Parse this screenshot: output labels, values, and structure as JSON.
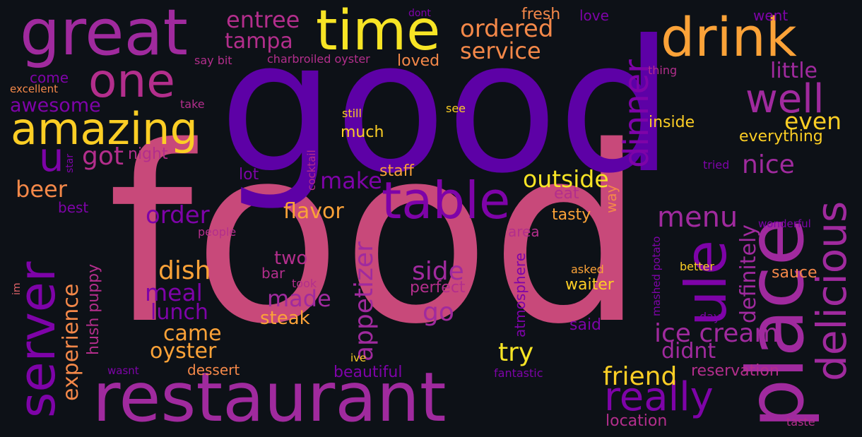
{
  "colors": {
    "background": "#0d1117",
    "c1": "#c8497a",
    "c2": "#5d01a6",
    "c3": "#a02a9e",
    "c4": "#f7e425",
    "c5": "#fba238",
    "c6": "#f48849",
    "c7": "#7e03a8",
    "c8": "#b32e8c",
    "c9": "#fcce25",
    "c10": "#e1646a"
  },
  "words": [
    {
      "text": "food",
      "color": "c1"
    },
    {
      "text": "good",
      "color": "c2"
    },
    {
      "text": "restaurant",
      "color": "c3"
    },
    {
      "text": "place",
      "color": "c3"
    },
    {
      "text": "great",
      "color": "c3"
    },
    {
      "text": "time",
      "color": "c4"
    },
    {
      "text": "drink",
      "color": "c5"
    },
    {
      "text": "table",
      "color": "c7"
    },
    {
      "text": "amazing",
      "color": "c9"
    },
    {
      "text": "server",
      "color": "c7"
    },
    {
      "text": "delicious",
      "color": "c3"
    },
    {
      "text": "one",
      "color": "c8"
    },
    {
      "text": "ule",
      "color": "c7"
    },
    {
      "text": "really",
      "color": "c7"
    },
    {
      "text": "well",
      "color": "c3"
    },
    {
      "text": "dinner",
      "color": "c7"
    },
    {
      "text": "ordered",
      "color": "c6"
    },
    {
      "text": "service",
      "color": "c6"
    },
    {
      "text": "entree",
      "color": "c8"
    },
    {
      "text": "tampa",
      "color": "c8"
    },
    {
      "text": "fresh",
      "color": "c6"
    },
    {
      "text": "love",
      "color": "c7"
    },
    {
      "text": "went",
      "color": "c7"
    },
    {
      "text": "little",
      "color": "c3"
    },
    {
      "text": "loved",
      "color": "c6"
    },
    {
      "text": "charbroiled oyster",
      "color": "c8"
    },
    {
      "text": "say bit",
      "color": "c8"
    },
    {
      "text": "dont",
      "color": "c7"
    },
    {
      "text": "thing",
      "color": "c8"
    },
    {
      "text": "come",
      "color": "c7"
    },
    {
      "text": "excellent",
      "color": "c6"
    },
    {
      "text": "awesome",
      "color": "c7"
    },
    {
      "text": "take",
      "color": "c8"
    },
    {
      "text": "still",
      "color": "c9"
    },
    {
      "text": "see",
      "color": "c9"
    },
    {
      "text": "much",
      "color": "c9"
    },
    {
      "text": "inside",
      "color": "c9"
    },
    {
      "text": "even",
      "color": "c9"
    },
    {
      "text": "everything",
      "color": "c9"
    },
    {
      "text": "u",
      "color": "c7"
    },
    {
      "text": "got",
      "color": "c8"
    },
    {
      "text": "night",
      "color": "c8"
    },
    {
      "text": "nice",
      "color": "c3"
    },
    {
      "text": "tried",
      "color": "c7"
    },
    {
      "text": "star",
      "color": "c7"
    },
    {
      "text": "cocktail",
      "color": "c8"
    },
    {
      "text": "lot",
      "color": "c7"
    },
    {
      "text": "staff",
      "color": "c5"
    },
    {
      "text": "make",
      "color": "c7"
    },
    {
      "text": "outside",
      "color": "c4"
    },
    {
      "text": "beer",
      "color": "c6"
    },
    {
      "text": "best",
      "color": "c7"
    },
    {
      "text": "eat",
      "color": "c8"
    },
    {
      "text": "tasty",
      "color": "c5"
    },
    {
      "text": "way",
      "color": "c6"
    },
    {
      "text": "flavor",
      "color": "c5"
    },
    {
      "text": "order",
      "color": "c7"
    },
    {
      "text": "menu",
      "color": "c3"
    },
    {
      "text": "definitely",
      "color": "c3"
    },
    {
      "text": "people",
      "color": "c8"
    },
    {
      "text": "wonderful",
      "color": "c7"
    },
    {
      "text": "appetizer",
      "color": "c3"
    },
    {
      "text": "area",
      "color": "c8"
    },
    {
      "text": "mashed potato",
      "color": "c7"
    },
    {
      "text": "two",
      "color": "c8"
    },
    {
      "text": "bar",
      "color": "c8"
    },
    {
      "text": "dish",
      "color": "c5"
    },
    {
      "text": "side",
      "color": "c3"
    },
    {
      "text": "experience",
      "color": "c6"
    },
    {
      "text": "hush puppy",
      "color": "c8"
    },
    {
      "text": "atmosphere",
      "color": "c7"
    },
    {
      "text": "asked",
      "color": "c5"
    },
    {
      "text": "better",
      "color": "c9"
    },
    {
      "text": "sauce",
      "color": "c6"
    },
    {
      "text": "perfect",
      "color": "c8"
    },
    {
      "text": "took",
      "color": "c8"
    },
    {
      "text": "waiter",
      "color": "c9"
    },
    {
      "text": "im",
      "color": "c10"
    },
    {
      "text": "meal",
      "color": "c7"
    },
    {
      "text": "made",
      "color": "c3"
    },
    {
      "text": "day",
      "color": "c7"
    },
    {
      "text": "lunch",
      "color": "c7"
    },
    {
      "text": "go",
      "color": "c3"
    },
    {
      "text": "steak",
      "color": "c5"
    },
    {
      "text": "said",
      "color": "c7"
    },
    {
      "text": "ice cream",
      "color": "c3"
    },
    {
      "text": "came",
      "color": "c5"
    },
    {
      "text": "oyster",
      "color": "c5"
    },
    {
      "text": "try",
      "color": "c4"
    },
    {
      "text": "didnt",
      "color": "c3"
    },
    {
      "text": "friend",
      "color": "c9"
    },
    {
      "text": "ive",
      "color": "c9"
    },
    {
      "text": "dessert",
      "color": "c6"
    },
    {
      "text": "beautiful",
      "color": "c7"
    },
    {
      "text": "fantastic",
      "color": "c7"
    },
    {
      "text": "wasnt",
      "color": "c7"
    },
    {
      "text": "reservation",
      "color": "c8"
    },
    {
      "text": "location",
      "color": "c8"
    },
    {
      "text": "taste",
      "color": "c8"
    }
  ]
}
